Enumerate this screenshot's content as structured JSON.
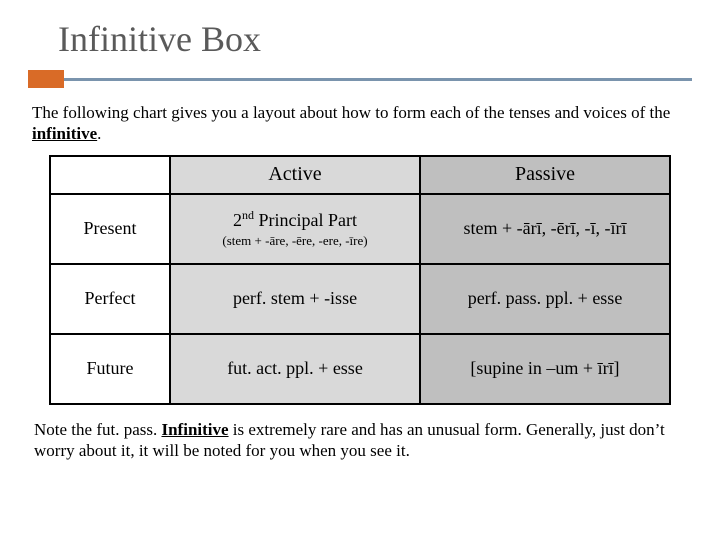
{
  "title": "Infinitive Box",
  "accent": {
    "block_color": "#d96b27",
    "line_color": "#7a94ad"
  },
  "intro": {
    "prefix": "The following chart gives you a layout about how to form each of the tenses and voices of the ",
    "keyword": "infinitive",
    "suffix": "."
  },
  "table": {
    "col_active_bg": "#d9d9d9",
    "col_passive_bg": "#bfbfbf",
    "headers": {
      "active": "Active",
      "passive": "Passive"
    },
    "rows": [
      {
        "label": "Present",
        "active_main_pre": "2",
        "active_main_sup": "nd",
        "active_main_post": " Principal Part",
        "active_sub": "(stem + -āre, -ēre, -ere, -īre)",
        "passive": "stem + -ārī, -ērī, -ī, -īrī"
      },
      {
        "label": "Perfect",
        "active": "perf. stem + -isse",
        "passive": "perf. pass. ppl. + esse"
      },
      {
        "label": "Future",
        "active": "fut. act. ppl. + esse",
        "passive": "[supine in –um + īrī]"
      }
    ]
  },
  "note": {
    "prefix": "Note the fut. pass. ",
    "keyword": "Infinitive",
    "suffix": " is extremely rare and has an unusual form. Generally, just don’t worry about it, it will be noted for you when you see it."
  }
}
